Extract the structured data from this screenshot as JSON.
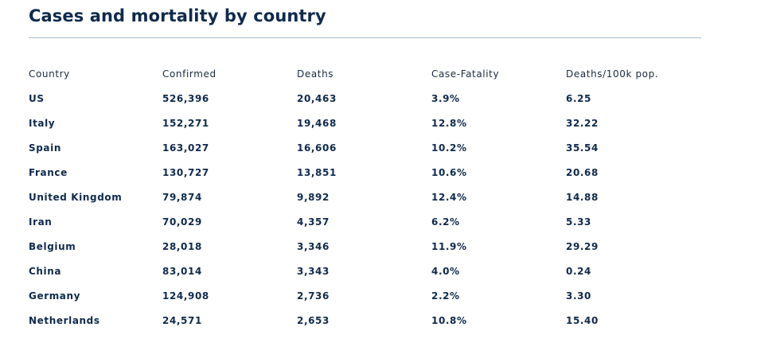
{
  "page": {
    "title": "Cases and mortality by country"
  },
  "table": {
    "columns": [
      "Country",
      "Confirmed",
      "Deaths",
      "Case-Fatality",
      "Deaths/100k pop."
    ],
    "rows": [
      [
        "US",
        "526,396",
        "20,463",
        "3.9%",
        "6.25"
      ],
      [
        "Italy",
        "152,271",
        "19,468",
        "12.8%",
        "32.22"
      ],
      [
        "Spain",
        "163,027",
        "16,606",
        "10.2%",
        "35.54"
      ],
      [
        "France",
        "130,727",
        "13,851",
        "10.6%",
        "20.68"
      ],
      [
        "United Kingdom",
        "79,874",
        "9,892",
        "12.4%",
        "14.88"
      ],
      [
        "Iran",
        "70,029",
        "4,357",
        "6.2%",
        "5.33"
      ],
      [
        "Belgium",
        "28,018",
        "3,346",
        "11.9%",
        "29.29"
      ],
      [
        "China",
        "83,014",
        "3,343",
        "4.0%",
        "0.24"
      ],
      [
        "Germany",
        "124,908",
        "2,736",
        "2.2%",
        "3.30"
      ],
      [
        "Netherlands",
        "24,571",
        "2,653",
        "10.8%",
        "15.40"
      ]
    ]
  },
  "colors": {
    "title": "#0f2a4d",
    "rule": "#a8b8cc",
    "header_text": "#1a2b40",
    "cell_text": "#0f2a4d",
    "background": "#ffffff"
  }
}
